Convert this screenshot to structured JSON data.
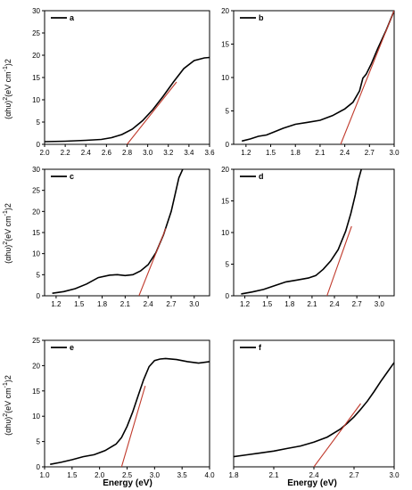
{
  "x_axis_title": "Energy (eV)",
  "y_axis_title": {
    "part1": "(αhυ)",
    "sup1": "2",
    "part2": "(eV cm",
    "sup2": "-1",
    "part3": ")2"
  },
  "colors": {
    "data_line": "#000000",
    "fit_line": "#c0392b",
    "axis": "#000000"
  },
  "chart_data": [
    {
      "type": "line",
      "legend": "a",
      "legend_position": "top-left",
      "xlim": [
        2.0,
        3.6
      ],
      "ylim": [
        0,
        30
      ],
      "xticks": [
        2.0,
        2.2,
        2.4,
        2.6,
        2.8,
        3.0,
        3.2,
        3.4,
        3.6
      ],
      "yticks": [
        0,
        5,
        10,
        15,
        20,
        25,
        30
      ],
      "series": [
        {
          "x": [
            2.0,
            2.2,
            2.4,
            2.55,
            2.65,
            2.75,
            2.85,
            2.95,
            3.05,
            3.15,
            3.25,
            3.35,
            3.45,
            3.55,
            3.6
          ],
          "y": [
            0.6,
            0.7,
            0.9,
            1.1,
            1.5,
            2.2,
            3.4,
            5.3,
            7.8,
            10.8,
            14.0,
            17.0,
            18.8,
            19.4,
            19.5
          ]
        }
      ],
      "fit": {
        "x": [
          2.8,
          3.28
        ],
        "y": [
          0,
          14.0
        ]
      }
    },
    {
      "type": "line",
      "legend": "b",
      "legend_position": "top-left",
      "xlim": [
        1.05,
        3.0
      ],
      "ylim": [
        0,
        20
      ],
      "xticks": [
        1.2,
        1.5,
        1.8,
        2.1,
        2.4,
        2.7,
        3.0
      ],
      "xtick_labels": [
        "1.2",
        "1.5",
        "1.8",
        "2.1",
        "2.4",
        "2.7",
        "3.0"
      ],
      "yticks": [
        0,
        5,
        10,
        15,
        20
      ],
      "series": [
        {
          "x": [
            1.15,
            1.25,
            1.35,
            1.45,
            1.55,
            1.65,
            1.8,
            1.95,
            2.1,
            2.25,
            2.4,
            2.5,
            2.58,
            2.62,
            2.66,
            2.72,
            2.8,
            2.9,
            3.0
          ],
          "y": [
            0.5,
            0.8,
            1.2,
            1.4,
            1.9,
            2.4,
            3.0,
            3.3,
            3.6,
            4.3,
            5.3,
            6.3,
            8.0,
            9.9,
            10.5,
            12.0,
            14.3,
            17.0,
            20.0
          ]
        }
      ],
      "fit": {
        "x": [
          2.35,
          3.0
        ],
        "y": [
          0,
          20.0
        ]
      }
    },
    {
      "type": "line",
      "legend": "c",
      "legend_position": "top-left",
      "xlim": [
        1.05,
        3.2
      ],
      "ylim": [
        0,
        30
      ],
      "xticks": [
        1.2,
        1.5,
        1.8,
        2.1,
        2.4,
        2.7,
        3.0
      ],
      "xtick_labels": [
        "1.2",
        "1.5",
        "1.8",
        "2.1",
        "2.4",
        "2.7",
        "3.0"
      ],
      "yticks": [
        0,
        5,
        10,
        15,
        20,
        25,
        30
      ],
      "series": [
        {
          "x": [
            1.15,
            1.3,
            1.45,
            1.6,
            1.75,
            1.9,
            2.0,
            2.1,
            2.2,
            2.3,
            2.4,
            2.5,
            2.6,
            2.7,
            2.75,
            2.8,
            2.85
          ],
          "y": [
            0.6,
            1.0,
            1.7,
            2.8,
            4.3,
            4.9,
            5.0,
            4.8,
            5.0,
            5.9,
            7.4,
            10.2,
            14.5,
            20.0,
            24.0,
            28.0,
            30.0
          ]
        }
      ],
      "fit": {
        "x": [
          2.28,
          2.63
        ],
        "y": [
          0,
          16.0
        ]
      }
    },
    {
      "type": "line",
      "legend": "d",
      "legend_position": "top-left",
      "xlim": [
        1.05,
        3.2
      ],
      "ylim": [
        0,
        20
      ],
      "xticks": [
        1.2,
        1.5,
        1.8,
        2.1,
        2.4,
        2.7,
        3.0
      ],
      "xtick_labels": [
        "1.2",
        "1.5",
        "1.8",
        "2.1",
        "2.4",
        "2.7",
        "3.0"
      ],
      "yticks": [
        0,
        5,
        10,
        15,
        20
      ],
      "series": [
        {
          "x": [
            1.15,
            1.3,
            1.45,
            1.6,
            1.75,
            1.9,
            2.05,
            2.15,
            2.25,
            2.35,
            2.45,
            2.55,
            2.62,
            2.68,
            2.72,
            2.76
          ],
          "y": [
            0.3,
            0.6,
            1.0,
            1.6,
            2.2,
            2.5,
            2.8,
            3.2,
            4.2,
            5.5,
            7.3,
            10.2,
            13.0,
            16.0,
            18.3,
            20.0
          ]
        }
      ],
      "fit": {
        "x": [
          2.3,
          2.63
        ],
        "y": [
          0,
          11.0
        ]
      }
    },
    {
      "type": "line",
      "legend": "e",
      "legend_position": "top-left",
      "xlim": [
        1.0,
        4.0
      ],
      "ylim": [
        0,
        25
      ],
      "xticks": [
        1.0,
        1.5,
        2.0,
        2.5,
        3.0,
        3.5,
        4.0
      ],
      "yticks": [
        0,
        5,
        10,
        15,
        20,
        25
      ],
      "series": [
        {
          "x": [
            1.1,
            1.3,
            1.5,
            1.7,
            1.9,
            2.1,
            2.3,
            2.4,
            2.5,
            2.6,
            2.7,
            2.8,
            2.9,
            3.0,
            3.1,
            3.2,
            3.4,
            3.6,
            3.8,
            4.0
          ],
          "y": [
            0.5,
            0.9,
            1.4,
            2.0,
            2.4,
            3.2,
            4.5,
            5.8,
            8.0,
            10.8,
            14.0,
            17.2,
            19.8,
            21.0,
            21.3,
            21.4,
            21.2,
            20.8,
            20.5,
            20.8
          ]
        }
      ],
      "fit": {
        "x": [
          2.4,
          2.83
        ],
        "y": [
          0,
          16.0
        ]
      }
    },
    {
      "type": "line",
      "legend": "f",
      "legend_position": "top-left",
      "xlim": [
        1.8,
        3.0
      ],
      "ylim": [
        0,
        20
      ],
      "xticks": [
        1.8,
        2.1,
        2.4,
        2.7,
        3.0
      ],
      "xtick_labels": [
        "1.8",
        "2.1",
        "2.4",
        "2.7",
        "3.0"
      ],
      "yticks": [],
      "series": [
        {
          "x": [
            1.8,
            1.9,
            2.0,
            2.1,
            2.2,
            2.3,
            2.4,
            2.5,
            2.6,
            2.65,
            2.7,
            2.75,
            2.8,
            2.85,
            2.9,
            2.95,
            3.0
          ],
          "y": [
            1.6,
            1.9,
            2.2,
            2.5,
            2.9,
            3.3,
            3.9,
            4.7,
            6.0,
            6.9,
            7.9,
            9.1,
            10.4,
            11.9,
            13.5,
            15.0,
            16.5
          ]
        }
      ],
      "fit": {
        "x": [
          2.4,
          2.75
        ],
        "y": [
          0,
          10.0
        ]
      }
    }
  ]
}
